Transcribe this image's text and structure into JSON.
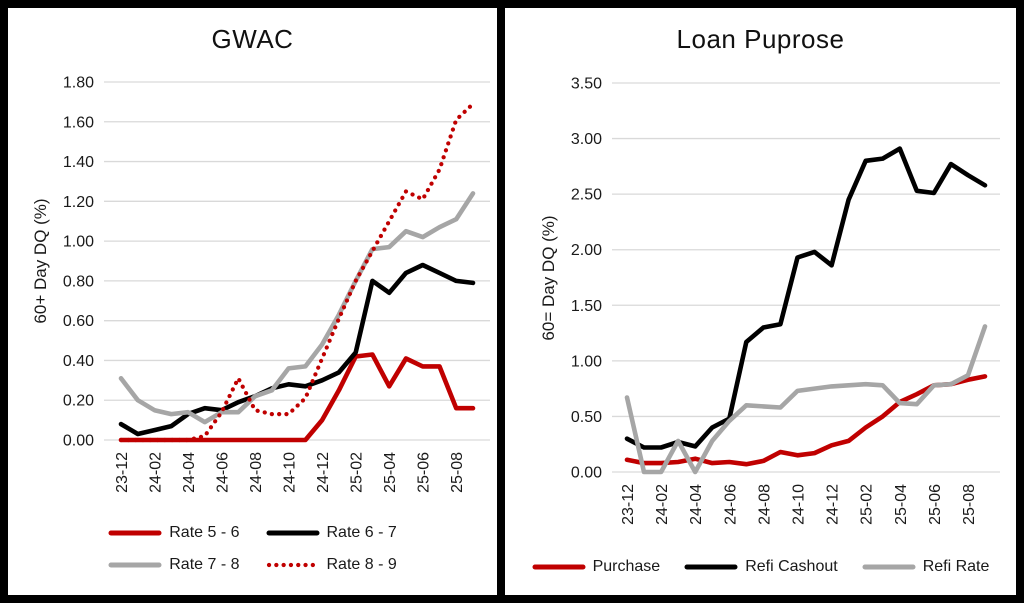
{
  "background": "#000000",
  "panel_background": "#ffffff",
  "gridline_color": "#d9d9d9",
  "chart_data": [
    {
      "type": "line",
      "title": "GWAC",
      "ylabel": "60+ Day DQ (%)",
      "ylim": [
        0,
        1.8
      ],
      "ytick_step": 0.2,
      "ytick_labels": [
        "0.00",
        "0.20",
        "0.40",
        "0.60",
        "0.80",
        "1.00",
        "1.20",
        "1.40",
        "1.60",
        "1.80"
      ],
      "grid": true,
      "legend_position": "bottom",
      "categories": [
        "23-12",
        "24-01",
        "24-02",
        "24-03",
        "24-04",
        "24-05",
        "24-06",
        "24-07",
        "24-08",
        "24-09",
        "24-10",
        "24-11",
        "24-12",
        "25-01",
        "25-02",
        "25-03",
        "25-04",
        "25-05",
        "25-06",
        "25-07",
        "25-08",
        "25-09"
      ],
      "xtick_every": 2,
      "xtick_labels_shown": [
        "23-12",
        "24-02",
        "24-04",
        "24-06",
        "24-08",
        "24-10",
        "24-12",
        "25-02",
        "25-04",
        "25-06",
        "25-08"
      ],
      "series": [
        {
          "name": "Rate 5 - 6",
          "color": "#C00000",
          "dash": "solid",
          "values": [
            0.0,
            0.0,
            0.0,
            0.0,
            0.0,
            0.0,
            0.0,
            0.0,
            0.0,
            0.0,
            0.0,
            0.0,
            0.1,
            0.25,
            0.42,
            0.43,
            0.27,
            0.41,
            0.37,
            0.37,
            0.16,
            0.16
          ]
        },
        {
          "name": "Rate 6 - 7",
          "color": "#000000",
          "dash": "solid",
          "values": [
            0.08,
            0.03,
            0.05,
            0.07,
            0.13,
            0.16,
            0.15,
            0.19,
            0.22,
            0.26,
            0.28,
            0.27,
            0.3,
            0.34,
            0.44,
            0.8,
            0.74,
            0.84,
            0.88,
            0.84,
            0.8,
            0.79
          ]
        },
        {
          "name": "Rate 7 - 8",
          "color": "#A6A6A6",
          "dash": "solid",
          "values": [
            0.31,
            0.2,
            0.15,
            0.13,
            0.14,
            0.09,
            0.14,
            0.14,
            0.22,
            0.25,
            0.36,
            0.37,
            0.48,
            0.63,
            0.8,
            0.96,
            0.97,
            1.05,
            1.02,
            1.07,
            1.11,
            1.24
          ]
        },
        {
          "name": "Rate 8 - 9",
          "color": "#C00000",
          "dash": "dotted",
          "values": [
            0.0,
            0.0,
            0.0,
            0.0,
            0.0,
            0.02,
            0.14,
            0.31,
            0.15,
            0.13,
            0.13,
            0.21,
            0.41,
            0.61,
            0.8,
            0.95,
            1.1,
            1.25,
            1.21,
            1.36,
            1.61,
            1.69
          ]
        }
      ]
    },
    {
      "type": "line",
      "title": "Loan Puprose",
      "ylabel": "60= Day DQ (%)",
      "ylim": [
        0,
        3.5
      ],
      "ytick_step": 0.5,
      "ytick_labels": [
        "0.00",
        "0.50",
        "1.00",
        "1.50",
        "2.00",
        "2.50",
        "3.00",
        "3.50"
      ],
      "grid": true,
      "legend_position": "bottom",
      "categories": [
        "23-12",
        "24-01",
        "24-02",
        "24-03",
        "24-04",
        "24-05",
        "24-06",
        "24-07",
        "24-08",
        "24-09",
        "24-10",
        "24-11",
        "24-12",
        "25-01",
        "25-02",
        "25-03",
        "25-04",
        "25-05",
        "25-06",
        "25-07",
        "25-08",
        "25-09"
      ],
      "xtick_every": 2,
      "xtick_labels_shown": [
        "23-12",
        "24-02",
        "24-04",
        "24-06",
        "24-08",
        "24-10",
        "24-12",
        "25-02",
        "25-04",
        "25-06",
        "25-08"
      ],
      "series": [
        {
          "name": "Purchase",
          "color": "#C00000",
          "dash": "solid",
          "values": [
            0.11,
            0.08,
            0.08,
            0.09,
            0.12,
            0.08,
            0.09,
            0.07,
            0.1,
            0.18,
            0.15,
            0.17,
            0.24,
            0.28,
            0.4,
            0.5,
            0.63,
            0.7,
            0.78,
            0.79,
            0.83,
            0.86
          ]
        },
        {
          "name": "Refi Cashout",
          "color": "#000000",
          "dash": "solid",
          "values": [
            0.3,
            0.22,
            0.22,
            0.27,
            0.23,
            0.4,
            0.48,
            1.17,
            1.3,
            1.33,
            1.93,
            1.98,
            1.86,
            2.45,
            2.8,
            2.82,
            2.91,
            2.53,
            2.51,
            2.77,
            2.67,
            2.58
          ]
        },
        {
          "name": "Refi Rate",
          "color": "#A6A6A6",
          "dash": "solid",
          "values": [
            0.67,
            0.0,
            0.0,
            0.28,
            0.0,
            0.28,
            0.46,
            0.6,
            0.59,
            0.58,
            0.73,
            0.75,
            0.77,
            0.78,
            0.79,
            0.78,
            0.62,
            0.61,
            0.78,
            0.79,
            0.87,
            1.31
          ]
        }
      ]
    }
  ]
}
